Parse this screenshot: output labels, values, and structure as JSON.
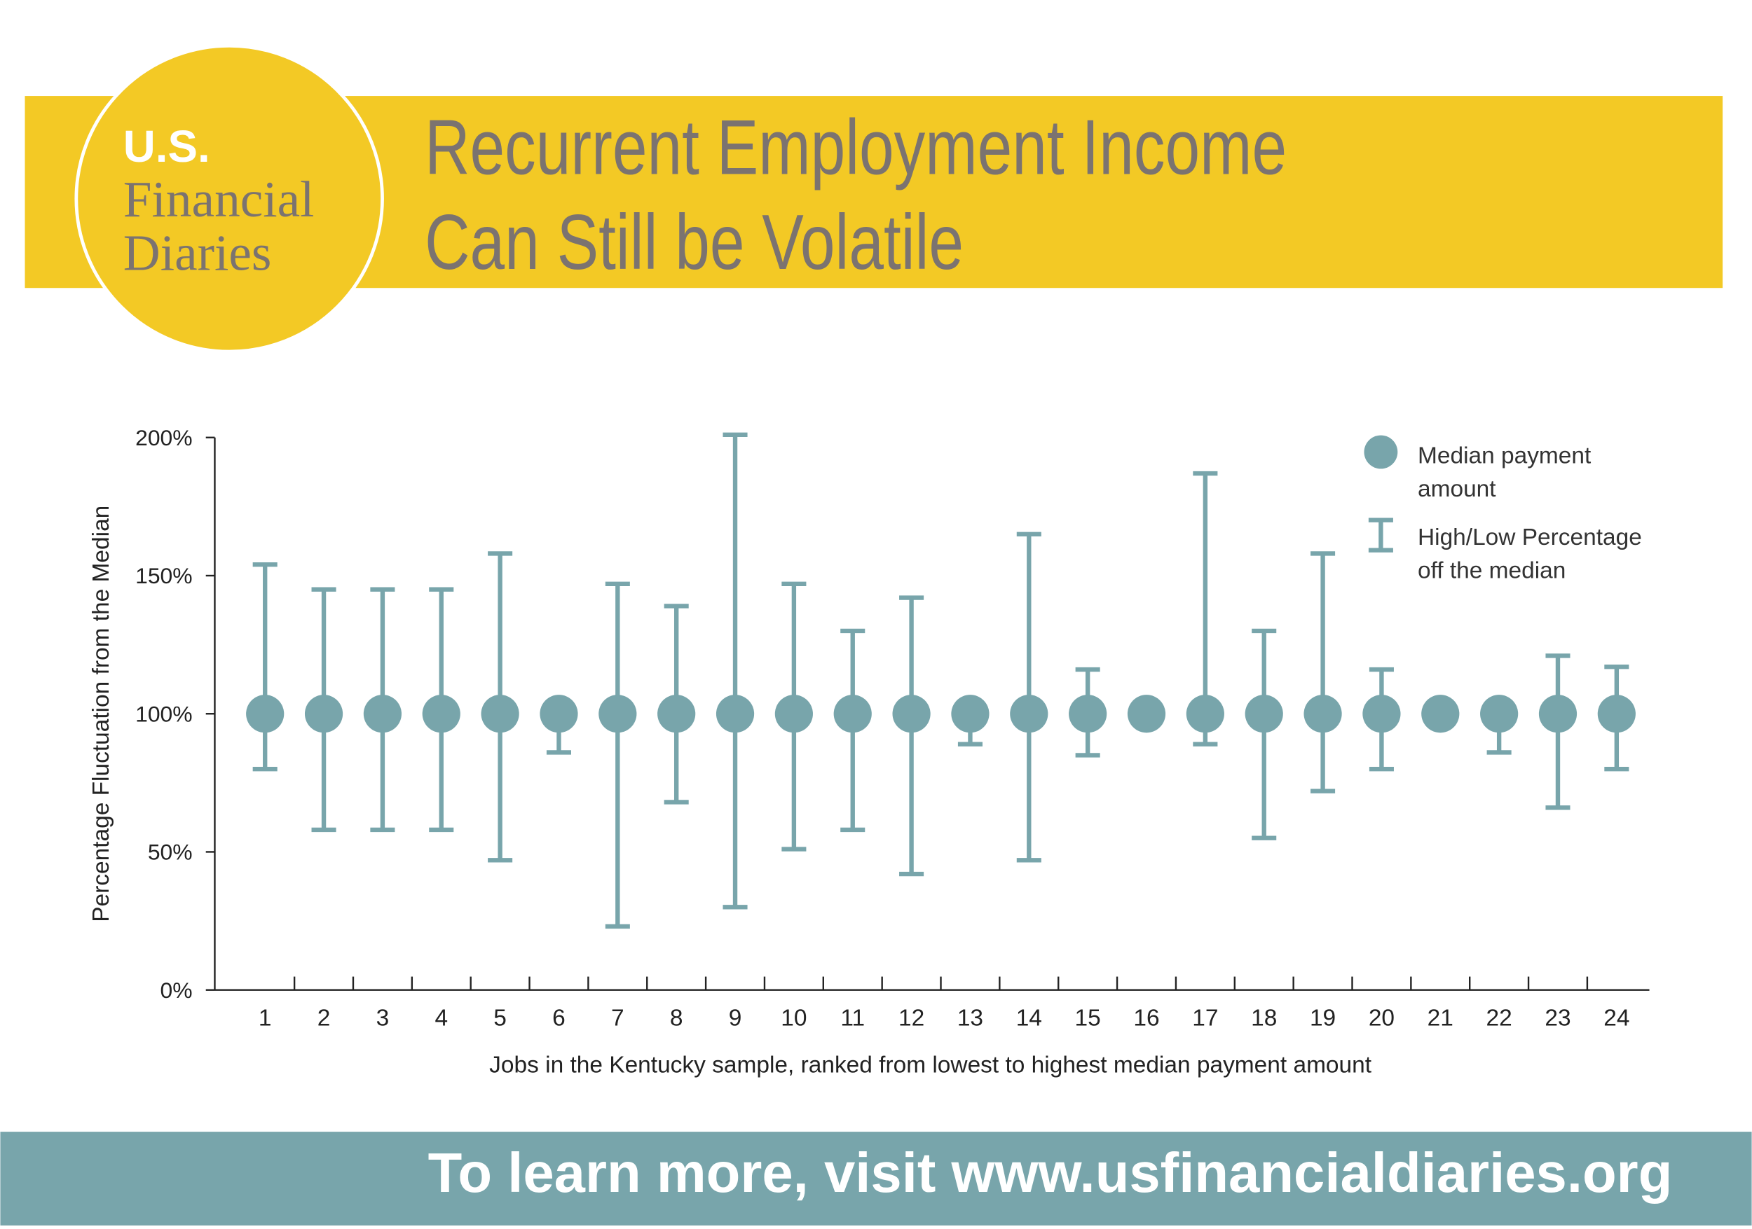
{
  "logo": {
    "lines": [
      "U.S.",
      "Financial",
      "Diaries"
    ]
  },
  "header": {
    "title_lines": [
      "Recurrent Employment Income",
      "Can Still be Volatile"
    ]
  },
  "chart_data": {
    "type": "errorbar",
    "y_label": "Percentage Fluctuation from the Median",
    "x_label": "Jobs in the Kentucky sample, ranked from lowest to highest median payment amount",
    "categories": [
      "1",
      "2",
      "3",
      "4",
      "5",
      "6",
      "7",
      "8",
      "9",
      "10",
      "11",
      "12",
      "13",
      "14",
      "15",
      "16",
      "17",
      "18",
      "19",
      "20",
      "21",
      "22",
      "23",
      "24"
    ],
    "values": [
      100,
      100,
      100,
      100,
      100,
      100,
      100,
      100,
      100,
      100,
      100,
      100,
      100,
      100,
      100,
      100,
      100,
      100,
      100,
      100,
      100,
      100,
      100,
      100
    ],
    "high": [
      154,
      145,
      145,
      145,
      158,
      100,
      147,
      139,
      201,
      147,
      130,
      142,
      100,
      165,
      116,
      100,
      187,
      130,
      158,
      116,
      100,
      100,
      121,
      117
    ],
    "low": [
      80,
      58,
      58,
      58,
      47,
      86,
      23,
      68,
      30,
      51,
      58,
      42,
      89,
      47,
      85,
      100,
      89,
      55,
      72,
      80,
      100,
      86,
      66,
      80
    ],
    "color": "#78a5ab",
    "ylim": [
      0,
      200
    ],
    "yticks": [
      {
        "value": 0,
        "label": "0%"
      },
      {
        "value": 50,
        "label": "50%"
      },
      {
        "value": 100,
        "label": "100%"
      },
      {
        "value": 150,
        "label": "150%"
      },
      {
        "value": 200,
        "label": "200%"
      }
    ],
    "legend": {
      "position": "upper right",
      "entries": [
        [
          "Median payment",
          "amount"
        ],
        [
          "High/Low Percentage",
          "off the median"
        ]
      ]
    }
  },
  "footer": {
    "text": "To learn more, visit www.usfinancialdiaries.org"
  }
}
